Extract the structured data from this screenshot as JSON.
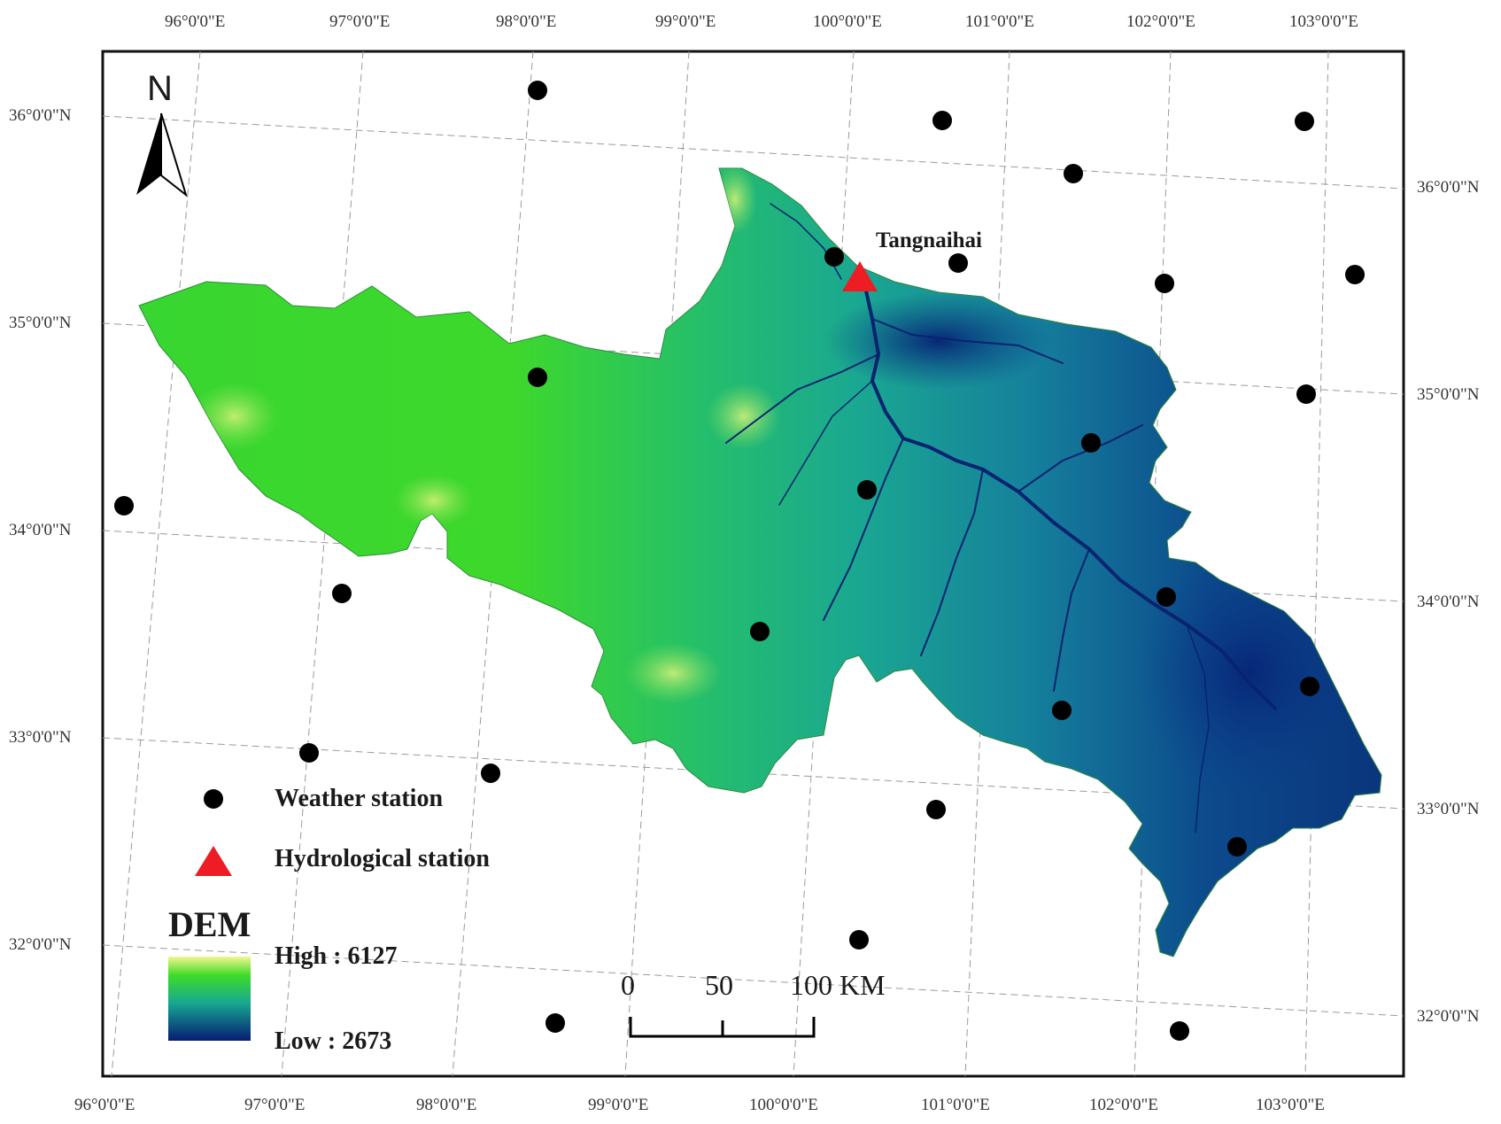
{
  "map": {
    "top_lon_labels": [
      "96°0'0\"E",
      "97°0'0\"E",
      "98°0'0\"E",
      "99°0'0\"E",
      "100°0'0\"E",
      "101°0'0\"E",
      "102°0'0\"E",
      "103°0'0\"E"
    ],
    "bottom_lon_labels": [
      "96°0'0\"E",
      "97°0'0\"E",
      "98°0'0\"E",
      "99°0'0\"E",
      "100°0'0\"E",
      "101°0'0\"E",
      "102°0'0\"E",
      "103°0'0\"E"
    ],
    "left_lat_labels": [
      "36°0'0\"N",
      "35°0'0\"N",
      "34°0'0\"N",
      "33°0'0\"N",
      "32°0'0\"N"
    ],
    "right_lat_labels": [
      "36°0'0\"N",
      "35°0'0\"N",
      "34°0'0\"N",
      "33°0'0\"N",
      "32°0'0\"N"
    ],
    "north_arrow": "N",
    "station_name": "Tangnaihai",
    "legend": {
      "weather": "Weather station",
      "hydro": "Hydrological station",
      "dem_title": "DEM",
      "high": "High : 6127",
      "low": "Low : 2673"
    },
    "scale": {
      "t0": "0",
      "t50": "50",
      "t100": "100 KM"
    },
    "colors": {
      "dem_high": "#f4f690",
      "dem_mid_high": "#3fdc27",
      "dem_mid": "#17a891",
      "dem_low": "#071c72",
      "hydro": "#ee1c24",
      "weather": "#000000"
    }
  }
}
